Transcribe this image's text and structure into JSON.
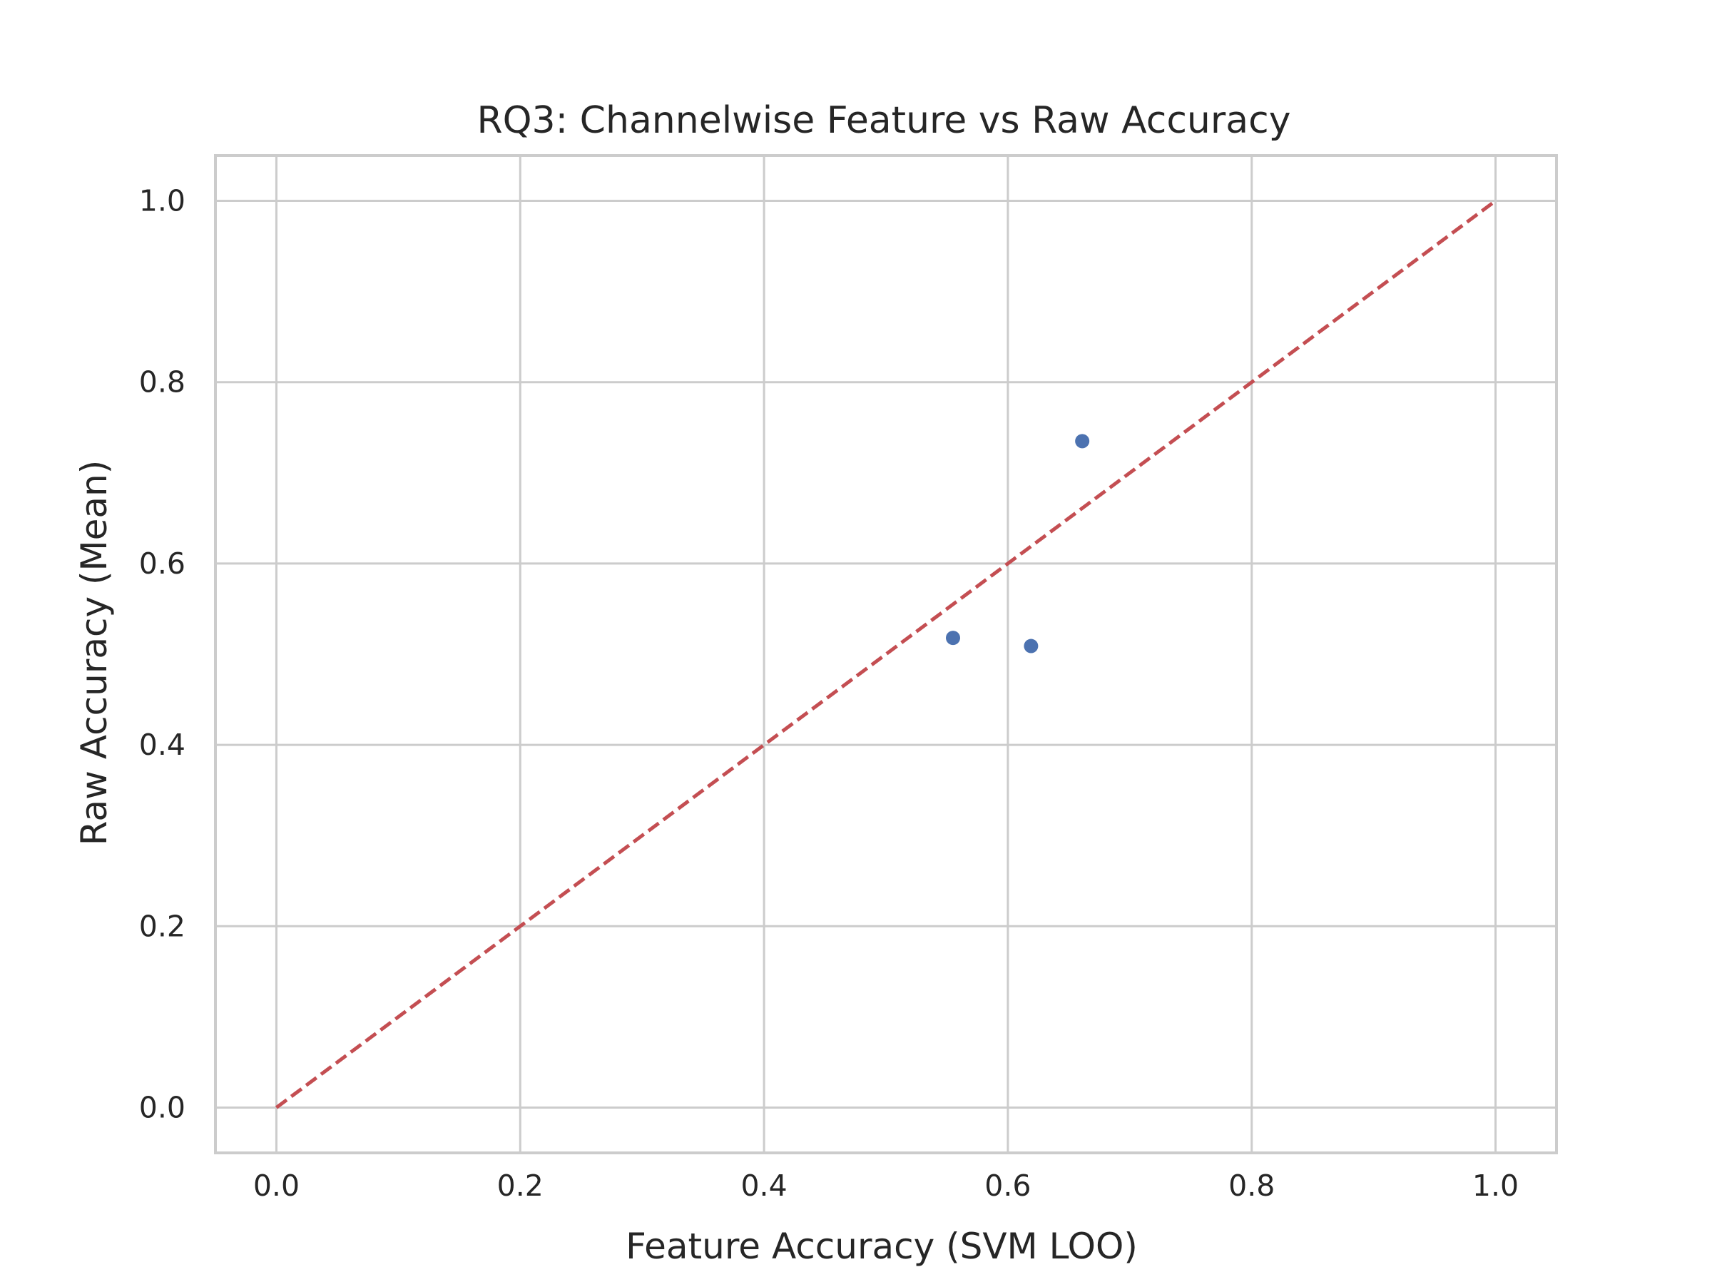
{
  "chart_data": {
    "type": "scatter",
    "title": "RQ3: Channelwise Feature vs Raw Accuracy",
    "xlabel": "Feature Accuracy (SVM LOO)",
    "ylabel": "Raw Accuracy (Mean)",
    "xlim": [
      -0.05,
      1.05
    ],
    "ylim": [
      -0.05,
      1.05
    ],
    "xticks": [
      "0.0",
      "0.2",
      "0.4",
      "0.6",
      "0.8",
      "1.0"
    ],
    "yticks": [
      "0.0",
      "0.2",
      "0.4",
      "0.6",
      "0.8",
      "1.0"
    ],
    "grid": true,
    "series": [
      {
        "points": [
          {
            "x": 0.555,
            "y": 0.518
          },
          {
            "x": 0.619,
            "y": 0.509
          },
          {
            "x": 0.661,
            "y": 0.735
          }
        ]
      }
    ],
    "reference_line": {
      "x": [
        0.0,
        1.0
      ],
      "y": [
        0.0,
        1.0
      ],
      "style": "dashed"
    },
    "colors": {
      "points": "#4c72b0",
      "reference_line": "#c44e52",
      "grid": "#cccccc",
      "spine": "#cccccc",
      "text": "#262626"
    }
  }
}
